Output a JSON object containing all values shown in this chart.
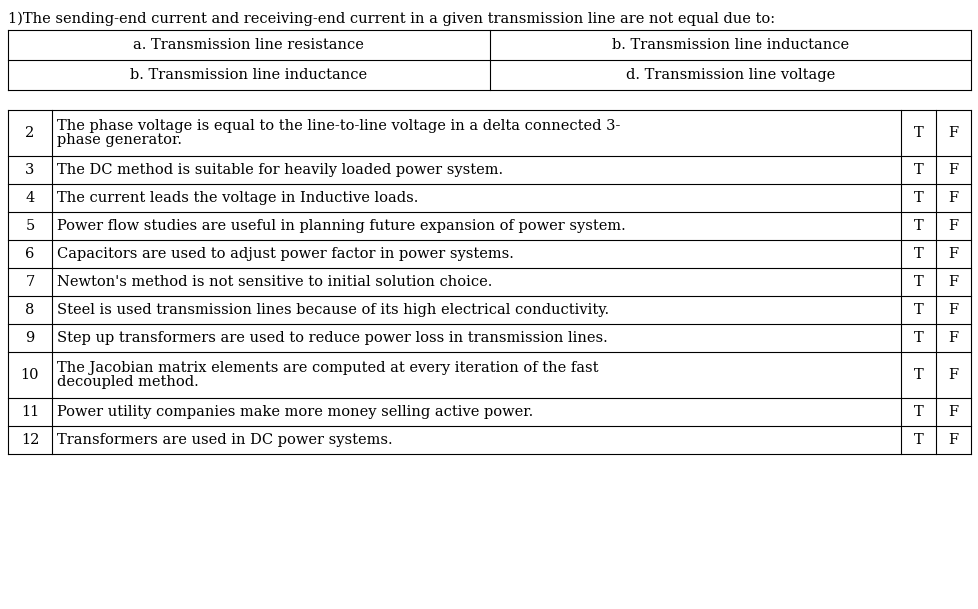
{
  "title_q1": "1)The sending-end current and receiving-end current in a given transmission line are not equal due to:",
  "mc_options": [
    [
      "a. Transmission line resistance",
      "b. Transmission line inductance"
    ],
    [
      "b. Transmission line inductance",
      "d. Transmission line voltage"
    ]
  ],
  "tf_rows": [
    {
      "num": "2",
      "lines": [
        "The phase voltage is equal to the line-to-line voltage in a delta connected 3-",
        "phase generator."
      ],
      "multiline": true
    },
    {
      "num": "3",
      "lines": [
        "The DC method is suitable for heavily loaded power system."
      ],
      "multiline": false
    },
    {
      "num": "4",
      "lines": [
        "The current leads the voltage in Inductive loads."
      ],
      "multiline": false
    },
    {
      "num": "5",
      "lines": [
        "Power flow studies are useful in planning future expansion of power system."
      ],
      "multiline": false
    },
    {
      "num": "6",
      "lines": [
        "Capacitors are used to adjust power factor in power systems."
      ],
      "multiline": false
    },
    {
      "num": "7",
      "lines": [
        "Newton's method is not sensitive to initial solution choice."
      ],
      "multiline": false
    },
    {
      "num": "8",
      "lines": [
        "Steel is used transmission lines because of its high electrical conductivity."
      ],
      "multiline": false
    },
    {
      "num": "9",
      "lines": [
        "Step up transformers are used to reduce power loss in transmission lines."
      ],
      "multiline": false
    },
    {
      "num": "10",
      "lines": [
        "The Jacobian matrix elements are computed at every iteration of the fast",
        "decoupled method."
      ],
      "multiline": true
    },
    {
      "num": "11",
      "lines": [
        "Power utility companies make more money selling active power."
      ],
      "multiline": false
    },
    {
      "num": "12",
      "lines": [
        "Transformers are used in DC power systems."
      ],
      "multiline": false
    }
  ],
  "bg_color": "#ffffff",
  "line_color": "#000000",
  "text_color": "#000000",
  "font_size": 10.5,
  "title_font_size": 10.5,
  "mc_font_size": 10.5,
  "tf_font_size": 10.5,
  "fig_width": 9.79,
  "fig_height": 6.09,
  "dpi": 100
}
